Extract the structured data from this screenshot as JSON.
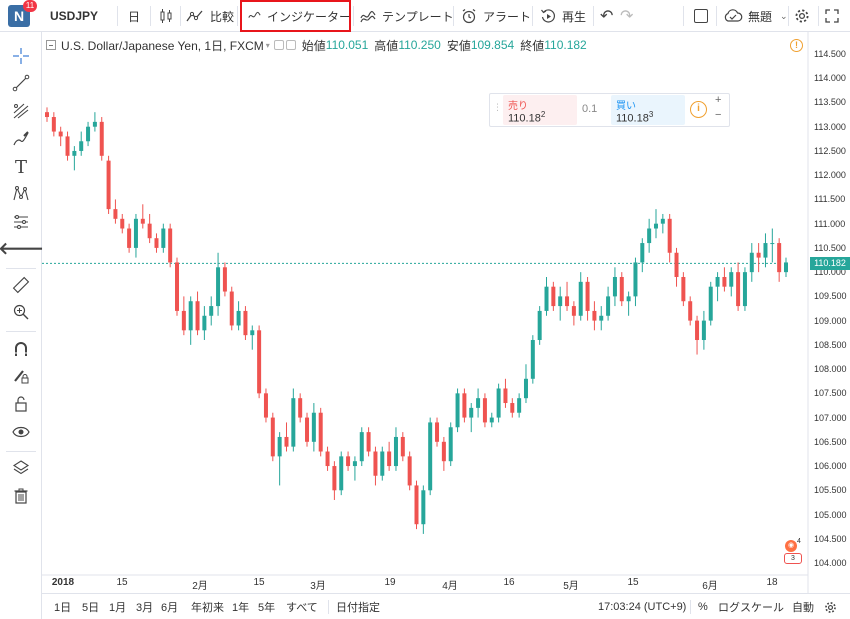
{
  "toolbar": {
    "logo_letter": "N",
    "logo_badge": "11",
    "symbol": "USDJPY",
    "interval": "日",
    "compare_label": "比較",
    "indicators_label": "インジケーター",
    "templates_label": "テンプレート",
    "alert_label": "アラート",
    "replay_label": "再生",
    "layout_name": "無題"
  },
  "legend": {
    "title": "U.S. Dollar/Japanese Yen, 1日, FXCM",
    "open_label": "始値",
    "open_value": "110.051",
    "high_label": "高値",
    "high_value": "110.250",
    "low_label": "安値",
    "low_value": "109.854",
    "close_label": "終値",
    "close_value": "110.182"
  },
  "trade": {
    "sell_label": "売り",
    "sell_price": "110.18",
    "sell_sup": "2",
    "spread": "0.1",
    "buy_label": "買い",
    "buy_price": "110.18",
    "buy_sup": "3",
    "plus": "+",
    "minus": "−"
  },
  "price_axis": {
    "labels": [
      "114.500",
      "114.000",
      "113.500",
      "113.000",
      "112.500",
      "112.000",
      "111.500",
      "111.000",
      "110.500",
      "110.000",
      "109.500",
      "109.000",
      "108.500",
      "108.000",
      "107.500",
      "107.000",
      "106.500",
      "106.000",
      "105.500",
      "105.000",
      "104.500",
      "104.000"
    ],
    "current_price": "110.182",
    "current_price_color": "#26a69a"
  },
  "time_axis": {
    "labels": [
      "2018",
      "15",
      "2月",
      "15",
      "3月",
      "19",
      "4月",
      "16",
      "5月",
      "15",
      "6月",
      "18"
    ]
  },
  "event_badge": {
    "count": "3",
    "flag_count": "4"
  },
  "bottombar": {
    "ranges": [
      "1日",
      "5日",
      "1月",
      "3月",
      "6月",
      "年初来",
      "1年",
      "5年",
      "すべて"
    ],
    "date_range_label": "日付指定",
    "clock": "17:03:24 (UTC+9)",
    "percent_label": "%",
    "log_label": "ログスケール",
    "auto_label": "自動"
  },
  "colors": {
    "up": "#26a69a",
    "down": "#ef5350",
    "accent_red": "#e8151b"
  },
  "chart_data": {
    "type": "candlestick",
    "y_range": [
      103.8,
      114.8
    ],
    "candles": [
      [
        113.3,
        113.4,
        113.1,
        113.2
      ],
      [
        113.2,
        113.3,
        112.8,
        112.9
      ],
      [
        112.9,
        113.0,
        112.6,
        112.8
      ],
      [
        112.8,
        112.9,
        112.3,
        112.4
      ],
      [
        112.4,
        112.6,
        112.1,
        112.5
      ],
      [
        112.5,
        112.9,
        112.4,
        112.7
      ],
      [
        112.7,
        113.1,
        112.6,
        113.0
      ],
      [
        113.0,
        113.3,
        112.9,
        113.1
      ],
      [
        113.1,
        113.2,
        112.3,
        112.4
      ],
      [
        112.3,
        112.4,
        111.2,
        111.3
      ],
      [
        111.3,
        111.5,
        111.0,
        111.1
      ],
      [
        111.1,
        111.2,
        110.8,
        110.9
      ],
      [
        110.9,
        111.0,
        110.4,
        110.5
      ],
      [
        110.5,
        111.2,
        110.3,
        111.1
      ],
      [
        111.1,
        111.4,
        110.9,
        111.0
      ],
      [
        111.0,
        111.2,
        110.6,
        110.7
      ],
      [
        110.7,
        110.8,
        110.4,
        110.5
      ],
      [
        110.5,
        111.0,
        110.4,
        110.9
      ],
      [
        110.9,
        111.0,
        110.1,
        110.2
      ],
      [
        110.2,
        110.3,
        109.1,
        109.2
      ],
      [
        109.2,
        109.5,
        108.7,
        108.8
      ],
      [
        108.8,
        109.5,
        108.5,
        109.4
      ],
      [
        109.4,
        109.6,
        108.7,
        108.8
      ],
      [
        108.8,
        109.3,
        108.6,
        109.1
      ],
      [
        109.1,
        109.5,
        108.9,
        109.3
      ],
      [
        109.3,
        110.4,
        109.1,
        110.1
      ],
      [
        110.1,
        110.2,
        109.5,
        109.6
      ],
      [
        109.6,
        109.7,
        108.8,
        108.9
      ],
      [
        108.9,
        109.4,
        108.8,
        109.2
      ],
      [
        109.2,
        109.3,
        108.6,
        108.7
      ],
      [
        108.7,
        108.9,
        108.4,
        108.8
      ],
      [
        108.8,
        108.9,
        107.4,
        107.5
      ],
      [
        107.5,
        107.6,
        106.9,
        107.0
      ],
      [
        107.0,
        107.1,
        106.1,
        106.2
      ],
      [
        106.2,
        106.7,
        105.6,
        106.6
      ],
      [
        106.6,
        106.9,
        106.3,
        106.4
      ],
      [
        106.4,
        107.6,
        106.3,
        107.4
      ],
      [
        107.4,
        107.5,
        106.9,
        107.0
      ],
      [
        107.0,
        107.1,
        106.4,
        106.5
      ],
      [
        106.5,
        107.3,
        106.3,
        107.1
      ],
      [
        107.1,
        107.2,
        106.2,
        106.3
      ],
      [
        106.3,
        106.4,
        105.9,
        106.0
      ],
      [
        106.0,
        106.1,
        105.3,
        105.5
      ],
      [
        105.5,
        106.3,
        105.4,
        106.2
      ],
      [
        106.2,
        106.3,
        105.9,
        106.0
      ],
      [
        106.0,
        106.2,
        105.7,
        106.1
      ],
      [
        106.1,
        106.8,
        106.0,
        106.7
      ],
      [
        106.7,
        106.8,
        106.2,
        106.3
      ],
      [
        106.3,
        106.4,
        105.6,
        105.8
      ],
      [
        105.8,
        106.4,
        105.7,
        106.3
      ],
      [
        106.3,
        106.5,
        105.9,
        106.0
      ],
      [
        106.0,
        106.8,
        105.9,
        106.6
      ],
      [
        106.6,
        106.7,
        106.1,
        106.2
      ],
      [
        106.2,
        106.3,
        105.5,
        105.6
      ],
      [
        105.6,
        105.7,
        104.7,
        104.8
      ],
      [
        104.8,
        105.6,
        104.6,
        105.5
      ],
      [
        105.5,
        107.0,
        105.4,
        106.9
      ],
      [
        106.9,
        107.0,
        106.4,
        106.5
      ],
      [
        106.5,
        106.6,
        105.9,
        106.1
      ],
      [
        106.1,
        106.9,
        106.0,
        106.8
      ],
      [
        106.8,
        107.6,
        106.7,
        107.5
      ],
      [
        107.5,
        107.6,
        106.9,
        107.0
      ],
      [
        107.0,
        107.3,
        106.7,
        107.2
      ],
      [
        107.2,
        107.6,
        107.0,
        107.4
      ],
      [
        107.4,
        107.5,
        106.8,
        106.9
      ],
      [
        106.9,
        107.1,
        106.8,
        107.0
      ],
      [
        107.0,
        107.7,
        106.9,
        107.6
      ],
      [
        107.6,
        107.8,
        107.2,
        107.3
      ],
      [
        107.3,
        107.4,
        107.0,
        107.1
      ],
      [
        107.1,
        107.5,
        107.0,
        107.4
      ],
      [
        107.4,
        108.1,
        107.3,
        107.8
      ],
      [
        107.8,
        108.7,
        107.7,
        108.6
      ],
      [
        108.6,
        109.3,
        108.5,
        109.2
      ],
      [
        109.2,
        109.9,
        109.1,
        109.7
      ],
      [
        109.7,
        109.8,
        109.2,
        109.3
      ],
      [
        109.3,
        109.7,
        109.0,
        109.5
      ],
      [
        109.5,
        109.8,
        109.2,
        109.3
      ],
      [
        109.3,
        109.4,
        108.9,
        109.1
      ],
      [
        109.1,
        110.0,
        109.0,
        109.8
      ],
      [
        109.8,
        109.9,
        109.0,
        109.2
      ],
      [
        109.2,
        109.4,
        108.8,
        109.0
      ],
      [
        109.0,
        109.3,
        108.8,
        109.1
      ],
      [
        109.1,
        109.7,
        109.0,
        109.5
      ],
      [
        109.5,
        110.1,
        109.3,
        109.9
      ],
      [
        109.9,
        110.0,
        109.3,
        109.4
      ],
      [
        109.4,
        109.6,
        109.1,
        109.5
      ],
      [
        109.5,
        110.3,
        109.3,
        110.2
      ],
      [
        110.2,
        110.7,
        110.0,
        110.6
      ],
      [
        110.6,
        111.1,
        110.4,
        110.9
      ],
      [
        110.9,
        111.3,
        110.7,
        111.0
      ],
      [
        111.0,
        111.2,
        110.8,
        111.1
      ],
      [
        111.1,
        111.2,
        110.2,
        110.4
      ],
      [
        110.4,
        110.5,
        109.7,
        109.9
      ],
      [
        109.9,
        110.0,
        109.3,
        109.4
      ],
      [
        109.4,
        109.5,
        108.9,
        109.0
      ],
      [
        109.0,
        109.1,
        108.3,
        108.6
      ],
      [
        108.6,
        109.2,
        108.4,
        109.0
      ],
      [
        109.0,
        109.8,
        108.9,
        109.7
      ],
      [
        109.7,
        110.0,
        109.4,
        109.9
      ],
      [
        109.9,
        110.1,
        109.6,
        109.7
      ],
      [
        109.7,
        110.1,
        109.5,
        110.0
      ],
      [
        110.0,
        110.2,
        109.2,
        109.3
      ],
      [
        109.3,
        110.1,
        109.2,
        110.0
      ],
      [
        110.0,
        110.6,
        109.8,
        110.4
      ],
      [
        110.4,
        110.6,
        110.0,
        110.3
      ],
      [
        110.3,
        110.8,
        110.1,
        110.6
      ],
      [
        110.6,
        110.9,
        110.2,
        110.6
      ],
      [
        110.6,
        110.7,
        109.8,
        110.0
      ],
      [
        110.0,
        110.3,
        109.9,
        110.2
      ]
    ]
  }
}
